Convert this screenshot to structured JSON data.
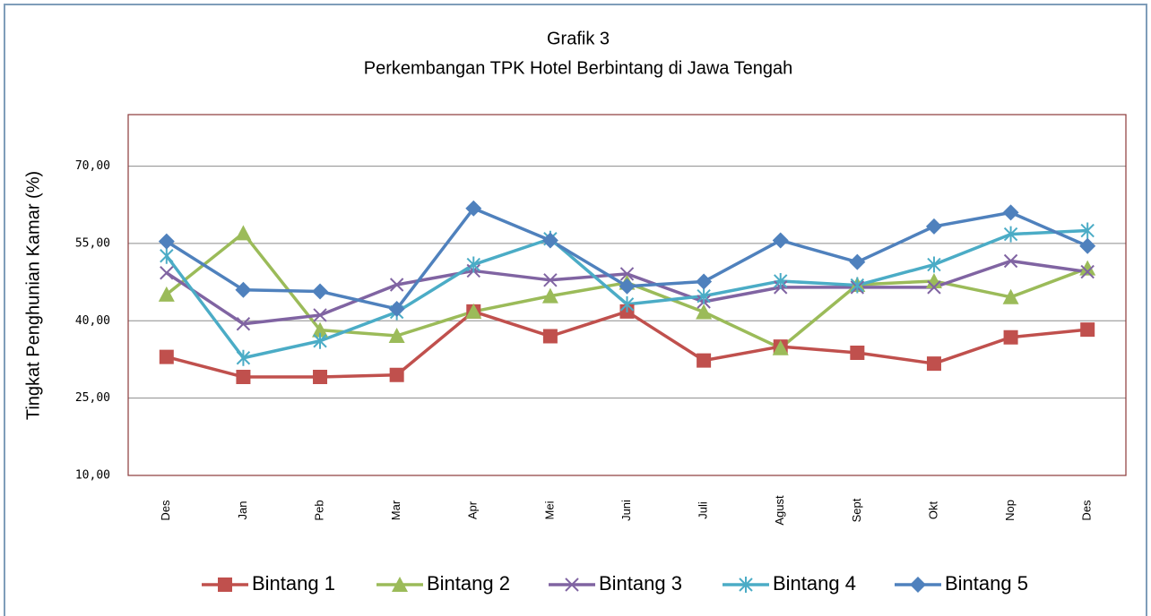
{
  "chart_data": {
    "type": "line",
    "title": "Grafik 3",
    "subtitle": "Perkembangan  TPK Hotel  Berbintang  di Jawa Tengah",
    "ylabel": "Tingkat Penghunian Kamar (%)",
    "categories": [
      "Des",
      "Jan",
      "Peb",
      "Mar",
      "Apr",
      "Mei",
      "Juni",
      "Juli",
      "Agust",
      "Sept",
      "Okt",
      "Nop",
      "Des"
    ],
    "series": [
      {
        "name": "Bintang 1",
        "color": "#c0504d",
        "marker": "square",
        "values": [
          33.0,
          29.1,
          29.1,
          29.5,
          41.8,
          37.0,
          41.8,
          32.3,
          35.0,
          33.8,
          31.7,
          36.8,
          38.3
        ]
      },
      {
        "name": "Bintang 2",
        "color": "#9bbb59",
        "marker": "triangle",
        "values": [
          45.1,
          57.0,
          38.2,
          37.1,
          41.8,
          44.8,
          47.4,
          41.7,
          34.7,
          47.0,
          47.7,
          44.6,
          50.2
        ]
      },
      {
        "name": "Bintang 3",
        "color": "#8064a2",
        "marker": "x",
        "values": [
          49.3,
          39.4,
          41.1,
          47.0,
          49.7,
          47.9,
          49.1,
          43.7,
          46.5,
          46.5,
          46.5,
          51.6,
          49.5
        ]
      },
      {
        "name": "Bintang 4",
        "color": "#4bacc6",
        "marker": "star",
        "values": [
          52.6,
          32.8,
          36.1,
          41.7,
          50.9,
          55.9,
          43.2,
          44.8,
          47.7,
          46.9,
          50.9,
          56.8,
          57.5
        ]
      },
      {
        "name": "Bintang 5",
        "color": "#4f81bd",
        "marker": "diamond",
        "values": [
          55.4,
          46.0,
          45.7,
          42.3,
          61.8,
          55.6,
          46.7,
          47.6,
          55.6,
          51.4,
          58.3,
          61.0,
          54.5
        ]
      }
    ],
    "ylim": [
      10,
      80
    ],
    "yticks": [
      {
        "value": 10,
        "label": "10,00"
      },
      {
        "value": 25,
        "label": "25,00"
      },
      {
        "value": 40,
        "label": "40,00"
      },
      {
        "value": 55,
        "label": "55,00"
      },
      {
        "value": 70,
        "label": "70,00"
      }
    ],
    "grid": true,
    "legend": "bottom"
  }
}
